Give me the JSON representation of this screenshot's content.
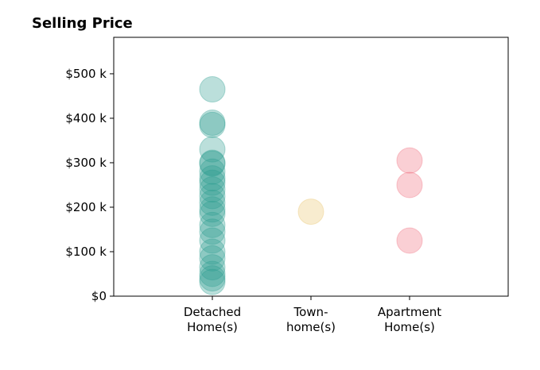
{
  "chart_data": {
    "type": "scatter",
    "title": "Selling Price",
    "xlabel": "",
    "ylabel": "",
    "categories": [
      "Detached\nHome(s)",
      "Town-\nhome(s)",
      "Apartment\nHome(s)"
    ],
    "xlim": [
      0,
      4
    ],
    "ylim": [
      0,
      500
    ],
    "y_ticks": [
      0,
      100,
      200,
      300,
      400,
      500
    ],
    "y_tick_labels": [
      "$0",
      "$100 k",
      "$200 k",
      "$300 k",
      "$400 k",
      "$500 k"
    ],
    "grid": false,
    "legend": "none",
    "series": [
      {
        "category": "Detached\nHome(s)",
        "color": "#2a9d8f",
        "values": [
          465,
          390,
          385,
          330,
          300,
          298,
          280,
          265,
          255,
          240,
          225,
          210,
          195,
          185,
          160,
          145,
          125,
          100,
          85,
          65,
          50,
          40,
          32
        ]
      },
      {
        "category": "Town-\nhome(s)",
        "color": "#e9c46a",
        "values": [
          190
        ]
      },
      {
        "category": "Apartment\nHome(s)",
        "color": "#ef6a7a",
        "values": [
          305,
          250,
          125
        ]
      }
    ]
  }
}
